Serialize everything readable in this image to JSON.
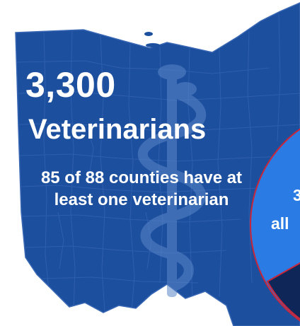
{
  "stat": {
    "number": "3,300",
    "label": "Veterinarians",
    "subtext": "85 of 88 counties have at least one veterinarian"
  },
  "pie_partial": {
    "line1": "3",
    "line2": "all"
  },
  "colors": {
    "map_fill": "#1c4f9e",
    "map_border": "#3a68b4",
    "county_lines": "#2f5fae",
    "watermark": "#5a86c8",
    "pie_fill": "#2a7be4",
    "pie_border": "#c8263a",
    "pie_dark": "#0e2658",
    "background": "#ffffff"
  },
  "icons": [
    "rod-of-asclepius-icon"
  ]
}
